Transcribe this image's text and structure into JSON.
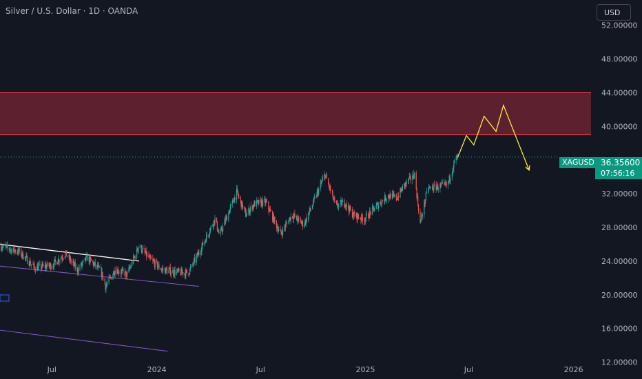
{
  "header": {
    "title": "Silver / U.S. Dollar · 1D · OANDA",
    "currency": "USD"
  },
  "price_tag": {
    "symbol": "XAGUSD",
    "price": "36.35600",
    "countdown": "07:56:16"
  },
  "colors": {
    "background": "#131722",
    "up": "#26a69a",
    "down": "#ef5350",
    "zone_fill": "#6b2231",
    "zone_border": "#f23645",
    "projection": "#ffeb3b",
    "channel": "#7e57c2",
    "trendline": "#ffffff",
    "price_line": "#26a69a"
  },
  "chart_data": {
    "type": "candlestick",
    "symbol": "XAGUSD",
    "x_tick_labels": [
      "Jul",
      "2024",
      "Jul",
      "2025",
      "Jul",
      "2026"
    ],
    "y_tick_labels": [
      "12.00000",
      "16.00000",
      "20.00000",
      "24.00000",
      "28.00000",
      "32.00000",
      "36.00000",
      "40.00000",
      "44.00000",
      "48.00000",
      "52.00000"
    ],
    "ylim": [
      10,
      55
    ],
    "xlim": [
      "2023-04-01",
      "2026-05-01"
    ],
    "last_price": 36.356,
    "price_path": [
      [
        "2023-04-01",
        25.8
      ],
      [
        "2023-05-05",
        25.1
      ],
      [
        "2023-06-01",
        23.2
      ],
      [
        "2023-07-01",
        23.5
      ],
      [
        "2023-07-25",
        24.9
      ],
      [
        "2023-08-15",
        22.9
      ],
      [
        "2023-09-01",
        24.4
      ],
      [
        "2023-09-25",
        22.8
      ],
      [
        "2023-10-03",
        21.0
      ],
      [
        "2023-10-20",
        23.0
      ],
      [
        "2023-11-10",
        22.4
      ],
      [
        "2023-12-01",
        25.8
      ],
      [
        "2023-12-20",
        24.2
      ],
      [
        "2024-01-10",
        23.0
      ],
      [
        "2024-02-01",
        22.7
      ],
      [
        "2024-02-25",
        22.6
      ],
      [
        "2024-03-15",
        25.0
      ],
      [
        "2024-04-12",
        29.0
      ],
      [
        "2024-04-20",
        27.0
      ],
      [
        "2024-05-20",
        32.2
      ],
      [
        "2024-06-05",
        29.5
      ],
      [
        "2024-06-20",
        30.8
      ],
      [
        "2024-07-10",
        31.0
      ],
      [
        "2024-08-05",
        27.2
      ],
      [
        "2024-08-25",
        29.5
      ],
      [
        "2024-09-15",
        28.3
      ],
      [
        "2024-10-05",
        31.5
      ],
      [
        "2024-10-22",
        34.3
      ],
      [
        "2024-11-10",
        30.5
      ],
      [
        "2024-11-25",
        31.0
      ],
      [
        "2024-12-10",
        29.5
      ],
      [
        "2024-12-30",
        29.0
      ],
      [
        "2025-01-20",
        30.5
      ],
      [
        "2025-02-10",
        31.8
      ],
      [
        "2025-02-25",
        31.5
      ],
      [
        "2025-03-10",
        33.0
      ],
      [
        "2025-03-28",
        34.3
      ],
      [
        "2025-04-07",
        28.5
      ],
      [
        "2025-04-20",
        32.6
      ],
      [
        "2025-05-05",
        32.8
      ],
      [
        "2025-05-25",
        33.0
      ],
      [
        "2025-06-06",
        35.8
      ],
      [
        "2025-06-12",
        36.356
      ]
    ],
    "supply_zone": {
      "low": 39.0,
      "high": 44.0
    },
    "projection_path": [
      [
        "2025-06-12",
        36.356
      ],
      [
        "2025-06-27",
        38.9
      ],
      [
        "2025-07-10",
        37.8
      ],
      [
        "2025-07-28",
        41.2
      ],
      [
        "2025-08-18",
        39.4
      ],
      [
        "2025-08-31",
        42.5
      ],
      [
        "2025-10-15",
        34.8
      ]
    ],
    "trendlines": [
      {
        "kind": "upper",
        "points": [
          [
            "2023-04-01",
            26.0
          ],
          [
            "2023-12-01",
            24.0
          ]
        ]
      },
      {
        "kind": "lower-channel",
        "points": [
          [
            "2023-04-01",
            23.4
          ],
          [
            "2024-03-15",
            21.0
          ]
        ]
      },
      {
        "kind": "lower-channel-2",
        "points": [
          [
            "2023-04-01",
            15.8
          ],
          [
            "2024-01-20",
            13.3
          ]
        ]
      }
    ]
  }
}
